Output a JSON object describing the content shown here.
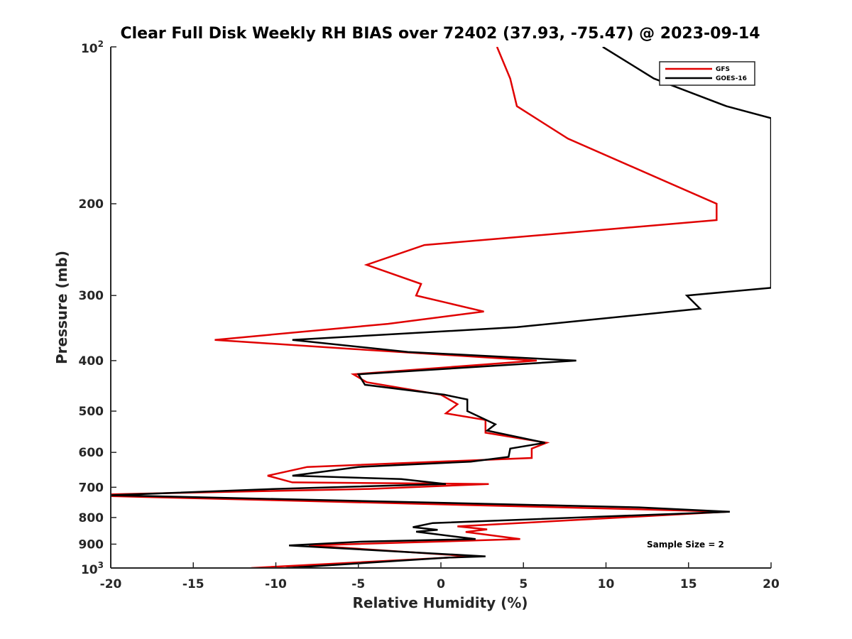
{
  "chart_data": {
    "type": "line",
    "title": "Clear Full Disk Weekly RH BIAS over 72402 (37.93, -75.47) @ 2023-09-14",
    "xlabel": "Relative Humidity (%)",
    "ylabel": "Pressure (mb)",
    "xlim": [
      -20,
      20
    ],
    "ylim": [
      100,
      1000
    ],
    "y_scale": "log",
    "y_reversed": true,
    "x_ticks": [
      -20,
      -15,
      -10,
      -5,
      0,
      5,
      10,
      15,
      20
    ],
    "x_tick_labels": [
      "-20",
      "-15",
      "-10",
      "-5",
      "0",
      "5",
      "10",
      "15",
      "20"
    ],
    "y_ticks": [
      200,
      300,
      400,
      500,
      600,
      700,
      800,
      900
    ],
    "y_tick_labels": [
      "200",
      "300",
      "400",
      "500",
      "600",
      "700",
      "800",
      "900"
    ],
    "y_power_ticks": [
      {
        "value": 100,
        "base": "10",
        "exp": "2"
      },
      {
        "value": 1000,
        "base": "10",
        "exp": "3"
      }
    ],
    "grid": false,
    "legend_position": "top-right",
    "annotation": "Sample Size = 2",
    "series": [
      {
        "name": "GFS",
        "color": "#e00000",
        "points": [
          [
            3.4,
            100
          ],
          [
            4.2,
            115
          ],
          [
            4.6,
            130
          ],
          [
            7.7,
            150
          ],
          [
            16.7,
            200
          ],
          [
            16.7,
            215
          ],
          [
            -1.0,
            240
          ],
          [
            -4.5,
            262
          ],
          [
            -1.2,
            285
          ],
          [
            -1.5,
            300
          ],
          [
            2.6,
            322
          ],
          [
            -3.2,
            340
          ],
          [
            -13.7,
            365
          ],
          [
            -5.3,
            380
          ],
          [
            5.8,
            400
          ],
          [
            -5.3,
            425
          ],
          [
            -4.5,
            440
          ],
          [
            0.0,
            465
          ],
          [
            1.0,
            485
          ],
          [
            0.3,
            505
          ],
          [
            2.7,
            520
          ],
          [
            2.7,
            550
          ],
          [
            6.4,
            575
          ],
          [
            5.5,
            590
          ],
          [
            5.5,
            615
          ],
          [
            -8.1,
            640
          ],
          [
            -10.5,
            665
          ],
          [
            -9.0,
            685
          ],
          [
            2.9,
            690
          ],
          [
            -4.3,
            705
          ],
          [
            -20.0,
            722
          ],
          [
            -20.0,
            728
          ],
          [
            11.0,
            770
          ],
          [
            17.3,
            780
          ],
          [
            1.0,
            832
          ],
          [
            2.8,
            843
          ],
          [
            1.5,
            853
          ],
          [
            4.8,
            880
          ],
          [
            -8.0,
            905
          ],
          [
            1.9,
            950
          ],
          [
            -11.5,
            1000
          ]
        ]
      },
      {
        "name": "GOES-16",
        "color": "#000000",
        "points": [
          [
            9.8,
            100
          ],
          [
            12.9,
            115
          ],
          [
            17.3,
            130
          ],
          [
            20.0,
            137
          ],
          [
            20.0,
            290
          ],
          [
            14.9,
            300
          ],
          [
            15.7,
            318
          ],
          [
            4.6,
            345
          ],
          [
            -9.0,
            365
          ],
          [
            -2.0,
            385
          ],
          [
            8.2,
            400
          ],
          [
            -5.0,
            425
          ],
          [
            -4.6,
            445
          ],
          [
            0.2,
            465
          ],
          [
            1.6,
            475
          ],
          [
            1.6,
            500
          ],
          [
            3.3,
            530
          ],
          [
            2.8,
            545
          ],
          [
            6.3,
            575
          ],
          [
            4.2,
            590
          ],
          [
            4.1,
            612
          ],
          [
            1.8,
            625
          ],
          [
            -5.0,
            640
          ],
          [
            -9.0,
            665
          ],
          [
            -2.4,
            675
          ],
          [
            0.3,
            690
          ],
          [
            -10.0,
            705
          ],
          [
            -20.0,
            725
          ],
          [
            12.0,
            765
          ],
          [
            17.5,
            780
          ],
          [
            -0.5,
            820
          ],
          [
            -1.7,
            835
          ],
          [
            -0.2,
            845
          ],
          [
            -1.5,
            852
          ],
          [
            2.1,
            880
          ],
          [
            -4.8,
            890
          ],
          [
            -9.2,
            905
          ],
          [
            2.7,
            950
          ],
          [
            0.5,
            955
          ],
          [
            -9.4,
            1000
          ]
        ]
      }
    ]
  }
}
